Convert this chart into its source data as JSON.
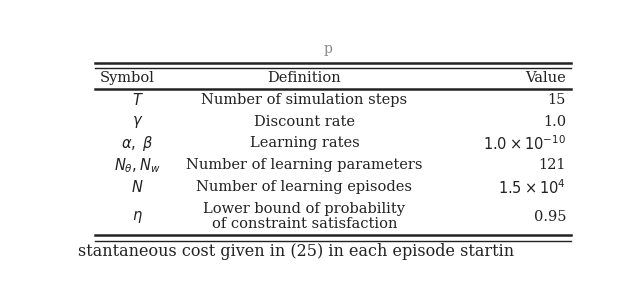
{
  "columns": [
    "Symbol",
    "Definition",
    "Value"
  ],
  "rows": [
    [
      "$T$",
      "Number of simulation steps",
      "15"
    ],
    [
      "$\\gamma$",
      "Discount rate",
      "1.0"
    ],
    [
      "$\\alpha,\\ \\beta$",
      "Learning rates",
      "$1.0 \\times 10^{-10}$"
    ],
    [
      "$N_{\\theta},N_{w}$",
      "Number of learning parameters",
      "121"
    ],
    [
      "$N$",
      "Number of learning episodes",
      "$1.5 \\times 10^{4}$"
    ],
    [
      "$\\eta$",
      "Lower bound of probability\nof constraint satisfaction",
      "0.95"
    ]
  ],
  "background_color": "#ffffff",
  "text_color": "#222222",
  "font_size": 10.5,
  "header_font_size": 10.5,
  "top_char": "p",
  "bottom_text": "stantaneous cost given in (25) in each episode startin",
  "bottom_text2": ""
}
